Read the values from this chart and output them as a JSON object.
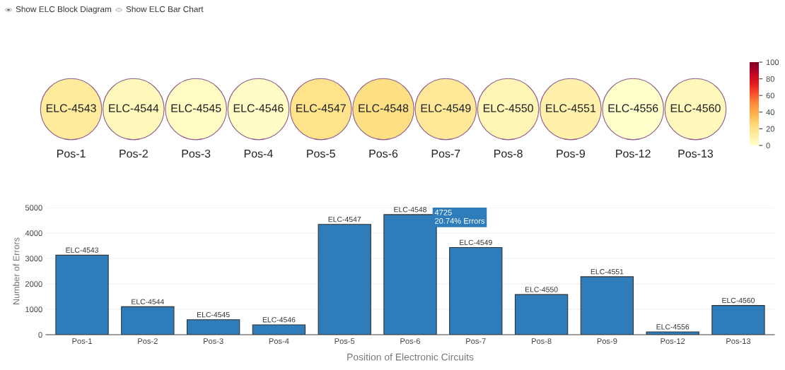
{
  "chart_data": [
    {
      "type": "heatmap",
      "annotations": [
        "Show ELC Block Diagram",
        "Show ELC Bar Chart"
      ],
      "categories": [
        "Pos-1",
        "Pos-2",
        "Pos-3",
        "Pos-4",
        "Pos-5",
        "Pos-6",
        "Pos-7",
        "Pos-8",
        "Pos-9",
        "Pos-12",
        "Pos-13"
      ],
      "y_categories": [
        null
      ],
      "cells": [
        [
          14,
          5,
          3,
          2,
          19,
          21,
          15,
          7,
          10,
          0,
          5
        ]
      ],
      "cell_labels": [
        [
          "ELC-4543",
          "ELC-4544",
          "ELC-4545",
          "ELC-4546",
          "ELC-4547",
          "ELC-4548",
          "ELC-4549",
          "ELC-4550",
          "ELC-4551",
          "ELC-4556",
          "ELC-4560"
        ]
      ],
      "clim": [
        0,
        100
      ],
      "cticks": [
        0,
        20,
        40,
        60,
        80,
        100
      ]
    },
    {
      "type": "bar",
      "xlabel": "Position of Electronic Circuits",
      "ylabel": "Number of Errors",
      "categories": [
        "Pos-1",
        "Pos-2",
        "Pos-3",
        "Pos-4",
        "Pos-5",
        "Pos-6",
        "Pos-7",
        "Pos-8",
        "Pos-9",
        "Pos-12",
        "Pos-13"
      ],
      "values": [
        3130,
        1100,
        590,
        390,
        4340,
        4725,
        3430,
        1580,
        2280,
        110,
        1150
      ],
      "value_labels": [
        "ELC-4543",
        "ELC-4544",
        "ELC-4545",
        "ELC-4546",
        "ELC-4547",
        "ELC-4548",
        "ELC-4549",
        "ELC-4550",
        "ELC-4551",
        "ELC-4556",
        "ELC-4560"
      ],
      "color": "#2e7dba",
      "annotations": [
        "4725\n20.74% Errors"
      ],
      "ylim": [
        0,
        5000
      ],
      "yticks": [
        0,
        1000,
        2000,
        3000,
        4000,
        5000
      ],
      "grid": "y",
      "legend": false
    }
  ]
}
